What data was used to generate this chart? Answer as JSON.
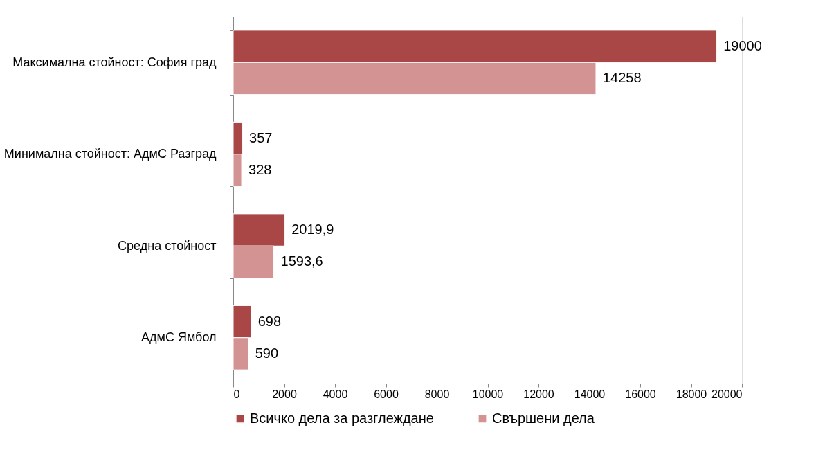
{
  "chart_data": {
    "type": "bar",
    "orientation": "horizontal",
    "categories": [
      "Максимална стойност: София град",
      "Минимална стойност: АдмС Разград",
      "Средна стойност",
      "АдмС Ямбол"
    ],
    "series": [
      {
        "name": "Всичко дела за разглеждане",
        "color": "#a94646",
        "values": [
          19000,
          357,
          2019.9,
          698
        ],
        "value_labels": [
          "19000",
          "357",
          "2019,9",
          "698"
        ]
      },
      {
        "name": "Свършени дела",
        "color": "#d49393",
        "values": [
          14258,
          328,
          1593.6,
          590
        ],
        "value_labels": [
          "14258",
          "328",
          "1593,6",
          "590"
        ]
      }
    ],
    "xlim": [
      0,
      20000
    ],
    "xticks": [
      0,
      2000,
      4000,
      6000,
      8000,
      10000,
      12000,
      14000,
      16000,
      18000,
      20000
    ],
    "legend": "bottom"
  }
}
